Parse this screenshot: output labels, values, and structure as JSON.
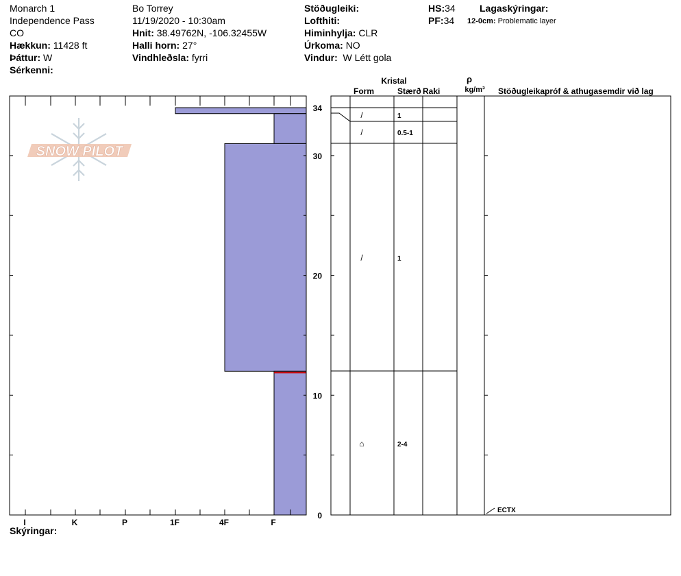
{
  "header": {
    "col1": {
      "line1": "Monarch 1",
      "line2": "Independence Pass",
      "line3": "CO",
      "elev_label": "Hækkun:",
      "elev_value": "11428 ft",
      "aspect_label": "Þáttur:",
      "aspect_value": "W",
      "special_label": "Sérkenni:"
    },
    "col2": {
      "observer": "Bo Torrey",
      "datetime": "11/19/2020 - 10:30am",
      "coords_label": "Hnit:",
      "coords_value": "38.49762N, -106.32455W",
      "slope_label": "Halli horn:",
      "slope_value": "27°",
      "wind_label": "Vindhleðsla:",
      "wind_value": "fyrri"
    },
    "col3": {
      "stability_label": "Stöðugleiki:",
      "airtemp_label": "Lofthiti:",
      "sky_label": "Himinhylja:",
      "sky_value": "CLR",
      "precip_label": "Úrkoma:",
      "precip_value": "NO",
      "windobs_label": "Vindur:",
      "windobs_value": "W Létt gola"
    },
    "col4": {
      "hs_label": "HS:",
      "hs_value": "34",
      "pf_label": "PF:",
      "pf_value": "34"
    },
    "col5": {
      "layer_notes_label": "Lagaskýringar:",
      "layer_note_range": "12-0cm:",
      "layer_note_text": "Problematic layer"
    }
  },
  "logo_text": "SNOW PILOT",
  "table_headers": {
    "crystal": "Kristal",
    "form": "Form",
    "size": "Stærð",
    "wet": "Raki",
    "rho": "ρ",
    "density_unit": "kg/m³",
    "comments": "Stöðugleikapróf & athugasemdir við lag"
  },
  "footer": {
    "notes_label": "Skýringar:"
  },
  "test_result": "ECTX",
  "colors": {
    "hardness_fill": "#9b9bd7",
    "problem_layer": "#cc0000",
    "frame": "#000000"
  },
  "chart_data": {
    "type": "bar",
    "hardness_categories": [
      "I",
      "K",
      "P",
      "1F",
      "4F",
      "F"
    ],
    "y_ticks": [
      0,
      10,
      20,
      30,
      34
    ],
    "ylim": [
      0,
      34
    ],
    "layers": [
      {
        "top": 34,
        "bottom": 33.5,
        "hardness": "1F",
        "form": "/",
        "size": "1"
      },
      {
        "top": 33.5,
        "bottom": 31,
        "hardness": "F",
        "form": "/",
        "size": "0.5-1"
      },
      {
        "top": 31,
        "bottom": 12,
        "hardness": "4F",
        "form": "/",
        "size": "1"
      },
      {
        "top": 12,
        "bottom": 0,
        "hardness": "F",
        "form": "⌂",
        "size": "2-4"
      }
    ],
    "problem_layer_depth": 12
  }
}
